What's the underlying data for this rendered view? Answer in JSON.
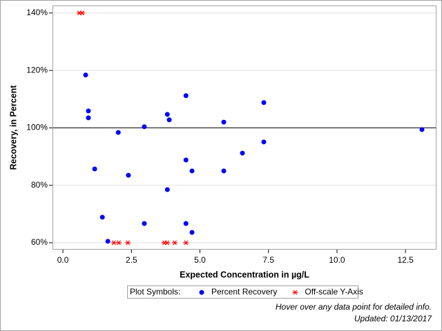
{
  "chart_data": {
    "type": "scatter",
    "xlabel": "Expected Concentration in µg/L",
    "ylabel": "Recovery, in Percent",
    "xlim": [
      -0.38,
      13.63
    ],
    "ylim": [
      57.6,
      142.6
    ],
    "xticks": [
      {
        "value": 0,
        "label": "0.0"
      },
      {
        "value": 2.5,
        "label": "2.5"
      },
      {
        "value": 5,
        "label": "5.0"
      },
      {
        "value": 7.5,
        "label": "7.5"
      },
      {
        "value": 10,
        "label": "10.0"
      },
      {
        "value": 12.5,
        "label": "12.5"
      }
    ],
    "yticks": [
      {
        "value": 60,
        "label": "60%"
      },
      {
        "value": 80,
        "label": "80%"
      },
      {
        "value": 100,
        "label": "100%"
      },
      {
        "value": 120,
        "label": "120%"
      },
      {
        "value": 140,
        "label": "140%"
      }
    ],
    "grid": true,
    "reference_line": 100,
    "legend_title": "Plot Symbols:",
    "series": [
      {
        "name": "Percent Recovery",
        "color": "#0000ff",
        "marker": "circle",
        "x": [
          0.83,
          0.93,
          0.93,
          1.16,
          1.44,
          1.64,
          2.02,
          2.39,
          2.97,
          2.97,
          3.81,
          3.88,
          3.81,
          4.49,
          4.49,
          4.49,
          4.71,
          4.71,
          5.87,
          5.87,
          6.55,
          7.33,
          7.33,
          13.1
        ],
        "values": [
          118.4,
          105.9,
          103.5,
          85.7,
          68.9,
          60.5,
          98.4,
          83.5,
          100.4,
          66.7,
          104.7,
          102.8,
          78.5,
          111.2,
          88.8,
          66.7,
          85.0,
          63.6,
          102.0,
          85.0,
          91.2,
          108.8,
          95.1,
          99.4
        ]
      },
      {
        "name": "Off-scale Y-Axis",
        "color": "#ff0000",
        "marker": "star",
        "x": [
          0.6,
          0.71,
          1.86,
          2.04,
          2.37,
          3.7,
          3.81,
          4.08,
          4.49
        ],
        "values": [
          140,
          140,
          60,
          60,
          60,
          60,
          60,
          60,
          60
        ]
      }
    ],
    "footnotes": [
      "Hover over any data point for detailed info.",
      "Updated: 01/13/2017"
    ]
  }
}
